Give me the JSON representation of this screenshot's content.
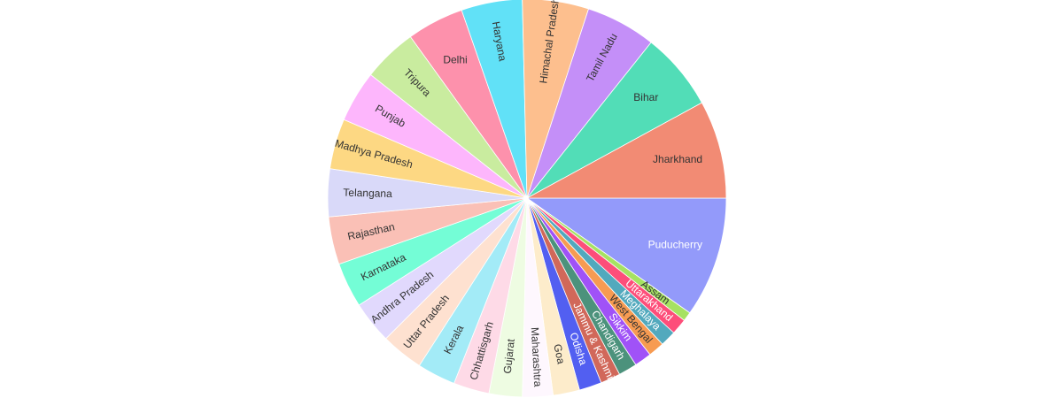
{
  "chart_data": {
    "type": "pie",
    "title": "",
    "labels": [
      "Puducherry",
      "Assam",
      "Uttarakhand",
      "Meghalaya",
      "West Bengal",
      "Sikkim",
      "Chandigarh",
      "Jammu & Kashmir",
      "Odisha",
      "Goa",
      "Maharashtra",
      "Gujarat",
      "Chhattisgarh",
      "Kerala",
      "Uttar Pradesh",
      "Andhra Pradesh",
      "Karnataka",
      "Rajasthan",
      "Telangana",
      "Madhya Pradesh",
      "Punjab",
      "Tripura",
      "Delhi",
      "Haryana",
      "Himachal Pradesh",
      "Tamil Nadu",
      "Bihar",
      "Jharkhand"
    ],
    "values": [
      9.1,
      0.7,
      1.2,
      1.2,
      1.2,
      1.3,
      1.4,
      1.5,
      1.7,
      2.0,
      2.3,
      2.5,
      2.7,
      2.9,
      3.2,
      3.2,
      3.4,
      3.6,
      3.6,
      3.8,
      3.9,
      4.1,
      4.3,
      4.6,
      5.0,
      5.3,
      5.9,
      7.4
    ],
    "colors": [
      "#939afa",
      "#a6e262",
      "#fd4e7a",
      "#52a9bd",
      "#f79b52",
      "#a052f7",
      "#4c927c",
      "#d1685a",
      "#525ff1",
      "#fdeccb",
      "#fef7fe",
      "#eefce2",
      "#fedae7",
      "#a3ebf7",
      "#fee1d0",
      "#e1d9fd",
      "#74fdd6",
      "#fac0b6",
      "#d9d9f9",
      "#fdd883",
      "#fdb6fc",
      "#c9ec9f",
      "#fd91ac",
      "#61e1f7",
      "#fdbf8e",
      "#c48ff8",
      "#52ddb7",
      "#f28b74"
    ],
    "label_colors": [
      "#ffffff",
      "#333333",
      "#ffffff",
      "#ffffff",
      "#333333",
      "#ffffff",
      "#ffffff",
      "#ffffff",
      "#ffffff",
      "#333333",
      "#333333",
      "#333333",
      "#333333",
      "#333333",
      "#333333",
      "#333333",
      "#333333",
      "#333333",
      "#333333",
      "#333333",
      "#333333",
      "#333333",
      "#333333",
      "#333333",
      "#333333",
      "#333333",
      "#333333",
      "#333333"
    ],
    "sort": "descending",
    "direction": "clockwise",
    "text_info": "label",
    "legend": "none"
  }
}
